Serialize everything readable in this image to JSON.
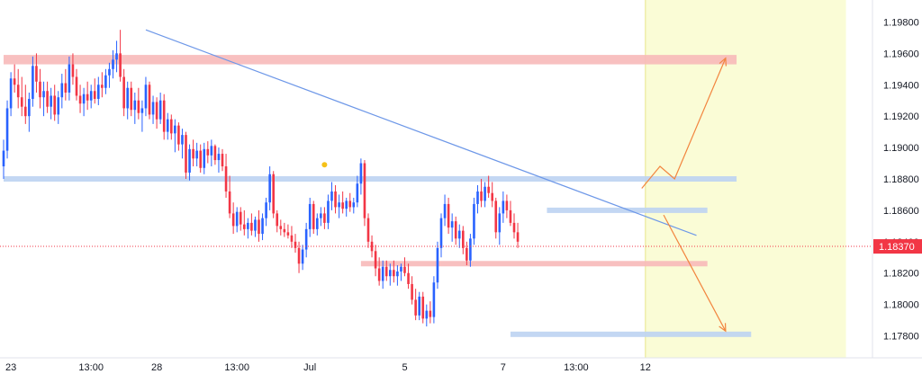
{
  "chart_data": {
    "type": "candlestick",
    "instrument_note": "",
    "y_axis": {
      "ticks": [
        "1.19800",
        "1.19600",
        "1.19400",
        "1.19200",
        "1.19000",
        "1.18800",
        "1.18600",
        "1.18400",
        "1.18200",
        "1.18000",
        "1.17800"
      ],
      "ylim": [
        1.1766,
        1.1994
      ],
      "current_price": "1.18370",
      "current_price_value": 1.1837
    },
    "x_axis": {
      "ticks": [
        {
          "label": "23",
          "bar": 2
        },
        {
          "label": "13:00",
          "bar": 24
        },
        {
          "label": "28",
          "bar": 42
        },
        {
          "label": "13:00",
          "bar": 64
        },
        {
          "label": "Jul",
          "bar": 84
        },
        {
          "label": "5",
          "bar": 110
        },
        {
          "label": "7",
          "bar": 137
        },
        {
          "label": "13:00",
          "bar": 157
        },
        {
          "label": "12",
          "bar": 176
        }
      ],
      "bars_visible": 240
    },
    "candles": [
      [
        1.1888,
        1.1905,
        1.188,
        1.1898
      ],
      [
        1.1898,
        1.193,
        1.1893,
        1.1925
      ],
      [
        1.1925,
        1.1948,
        1.192,
        1.1944
      ],
      [
        1.1944,
        1.1953,
        1.1935,
        1.194
      ],
      [
        1.194,
        1.195,
        1.1925,
        1.1932
      ],
      [
        1.1932,
        1.1945,
        1.192,
        1.1926
      ],
      [
        1.1926,
        1.194,
        1.1915,
        1.192
      ],
      [
        1.192,
        1.1935,
        1.191,
        1.1931
      ],
      [
        1.1931,
        1.1958,
        1.1926,
        1.1952
      ],
      [
        1.1952,
        1.196,
        1.1935,
        1.1942
      ],
      [
        1.1942,
        1.195,
        1.1925,
        1.1932
      ],
      [
        1.1932,
        1.1942,
        1.192,
        1.1936
      ],
      [
        1.1936,
        1.1942,
        1.1922,
        1.1926
      ],
      [
        1.1926,
        1.1938,
        1.1918,
        1.1933
      ],
      [
        1.1933,
        1.194,
        1.1917,
        1.1921
      ],
      [
        1.1921,
        1.1936,
        1.1915,
        1.1932
      ],
      [
        1.1932,
        1.1947,
        1.1925,
        1.1941
      ],
      [
        1.1941,
        1.195,
        1.193,
        1.1935
      ],
      [
        1.1935,
        1.1958,
        1.193,
        1.1953
      ],
      [
        1.1953,
        1.196,
        1.194,
        1.1945
      ],
      [
        1.1945,
        1.195,
        1.193,
        1.1933
      ],
      [
        1.1933,
        1.194,
        1.1922,
        1.1928
      ],
      [
        1.1928,
        1.1938,
        1.192,
        1.1934
      ],
      [
        1.1934,
        1.1942,
        1.1924,
        1.193
      ],
      [
        1.193,
        1.194,
        1.1925,
        1.1936
      ],
      [
        1.1936,
        1.1944,
        1.1928,
        1.1931
      ],
      [
        1.1931,
        1.1945,
        1.1927,
        1.194
      ],
      [
        1.194,
        1.1948,
        1.1932,
        1.1938
      ],
      [
        1.1938,
        1.195,
        1.1934,
        1.1946
      ],
      [
        1.1946,
        1.1954,
        1.1938,
        1.195
      ],
      [
        1.195,
        1.1962,
        1.1944,
        1.1956
      ],
      [
        1.1956,
        1.1968,
        1.1948,
        1.196
      ],
      [
        1.196,
        1.1975,
        1.1942,
        1.1945
      ],
      [
        1.1945,
        1.195,
        1.192,
        1.1925
      ],
      [
        1.1925,
        1.1942,
        1.1918,
        1.1938
      ],
      [
        1.1938,
        1.1942,
        1.192,
        1.1924
      ],
      [
        1.1924,
        1.1935,
        1.1915,
        1.193
      ],
      [
        1.193,
        1.1938,
        1.1918,
        1.1922
      ],
      [
        1.1922,
        1.193,
        1.191,
        1.1925
      ],
      [
        1.1925,
        1.1945,
        1.192,
        1.194
      ],
      [
        1.194,
        1.1942,
        1.1918,
        1.1921
      ],
      [
        1.1921,
        1.1933,
        1.1915,
        1.1929
      ],
      [
        1.1929,
        1.1932,
        1.1912,
        1.1918
      ],
      [
        1.1918,
        1.1935,
        1.1915,
        1.193
      ],
      [
        1.193,
        1.1934,
        1.1905,
        1.191
      ],
      [
        1.191,
        1.1922,
        1.1905,
        1.1918
      ],
      [
        1.1918,
        1.1921,
        1.1905,
        1.1909
      ],
      [
        1.1909,
        1.1918,
        1.1897,
        1.1914
      ],
      [
        1.1914,
        1.1916,
        1.1898,
        1.1902
      ],
      [
        1.1902,
        1.1912,
        1.1893,
        1.1908
      ],
      [
        1.1908,
        1.191,
        1.188,
        1.1884
      ],
      [
        1.1884,
        1.1902,
        1.1879,
        1.1899
      ],
      [
        1.1899,
        1.1905,
        1.1888,
        1.1893
      ],
      [
        1.1893,
        1.1903,
        1.1888,
        1.1898
      ],
      [
        1.1898,
        1.1902,
        1.1884,
        1.1887
      ],
      [
        1.1887,
        1.1903,
        1.1883,
        1.1899
      ],
      [
        1.1899,
        1.1904,
        1.189,
        1.1895
      ],
      [
        1.1895,
        1.1905,
        1.1888,
        1.1901
      ],
      [
        1.1901,
        1.1902,
        1.1889,
        1.1892
      ],
      [
        1.1892,
        1.19,
        1.1884,
        1.1896
      ],
      [
        1.1896,
        1.1899,
        1.1885,
        1.1888
      ],
      [
        1.1888,
        1.1896,
        1.1868,
        1.1872
      ],
      [
        1.1872,
        1.1882,
        1.1855,
        1.1858
      ],
      [
        1.1858,
        1.1865,
        1.1845,
        1.185
      ],
      [
        1.185,
        1.1862,
        1.1846,
        1.1859
      ],
      [
        1.1859,
        1.1862,
        1.1847,
        1.1851
      ],
      [
        1.1851,
        1.186,
        1.1844,
        1.1848
      ],
      [
        1.1848,
        1.1855,
        1.1842,
        1.1852
      ],
      [
        1.1852,
        1.1858,
        1.1844,
        1.1847
      ],
      [
        1.1847,
        1.1856,
        1.1843,
        1.1854
      ],
      [
        1.1854,
        1.186,
        1.184,
        1.1845
      ],
      [
        1.1845,
        1.1858,
        1.1841,
        1.1855
      ],
      [
        1.1855,
        1.1868,
        1.185,
        1.1865
      ],
      [
        1.1865,
        1.1888,
        1.186,
        1.1883
      ],
      [
        1.1883,
        1.1885,
        1.1855,
        1.1858
      ],
      [
        1.1858,
        1.186,
        1.1846,
        1.185
      ],
      [
        1.185,
        1.1854,
        1.1844,
        1.1848
      ],
      [
        1.1848,
        1.1852,
        1.1843,
        1.1846
      ],
      [
        1.1846,
        1.1851,
        1.1842,
        1.1844
      ],
      [
        1.1844,
        1.185,
        1.1836,
        1.184
      ],
      [
        1.184,
        1.1845,
        1.1833,
        1.1836
      ],
      [
        1.1836,
        1.184,
        1.182,
        1.1826
      ],
      [
        1.1826,
        1.1838,
        1.1822,
        1.1835
      ],
      [
        1.1835,
        1.1852,
        1.183,
        1.1848
      ],
      [
        1.1848,
        1.1868,
        1.1843,
        1.1864
      ],
      [
        1.1864,
        1.1866,
        1.1845,
        1.1848
      ],
      [
        1.1848,
        1.1858,
        1.1844,
        1.1855
      ],
      [
        1.1855,
        1.1862,
        1.185,
        1.1858
      ],
      [
        1.1858,
        1.1862,
        1.1848,
        1.1852
      ],
      [
        1.1852,
        1.187,
        1.1848,
        1.1866
      ],
      [
        1.1866,
        1.1878,
        1.186,
        1.1872
      ],
      [
        1.1872,
        1.1876,
        1.1858,
        1.1862
      ],
      [
        1.1862,
        1.187,
        1.1855,
        1.1865
      ],
      [
        1.1865,
        1.1872,
        1.1858,
        1.1861
      ],
      [
        1.1861,
        1.1868,
        1.1856,
        1.1866
      ],
      [
        1.1866,
        1.1871,
        1.1859,
        1.1862
      ],
      [
        1.1862,
        1.1868,
        1.1858,
        1.1865
      ],
      [
        1.1865,
        1.1882,
        1.1862,
        1.1877
      ],
      [
        1.1877,
        1.1893,
        1.187,
        1.189
      ],
      [
        1.189,
        1.1892,
        1.185,
        1.1855
      ],
      [
        1.1855,
        1.1858,
        1.1836,
        1.184
      ],
      [
        1.184,
        1.1844,
        1.183,
        1.1834
      ],
      [
        1.1834,
        1.1838,
        1.1818,
        1.1823
      ],
      [
        1.1823,
        1.183,
        1.1812,
        1.1815
      ],
      [
        1.1815,
        1.1828,
        1.181,
        1.1824
      ],
      [
        1.1824,
        1.1828,
        1.1815,
        1.1818
      ],
      [
        1.1818,
        1.1826,
        1.1812,
        1.1822
      ],
      [
        1.1822,
        1.1828,
        1.1814,
        1.1818
      ],
      [
        1.1818,
        1.1825,
        1.1812,
        1.1821
      ],
      [
        1.1821,
        1.1826,
        1.1815,
        1.1824
      ],
      [
        1.1824,
        1.183,
        1.1818,
        1.182
      ],
      [
        1.182,
        1.1826,
        1.181,
        1.1813
      ],
      [
        1.1813,
        1.1818,
        1.18,
        1.1803
      ],
      [
        1.1803,
        1.181,
        1.179,
        1.1793
      ],
      [
        1.1793,
        1.1808,
        1.179,
        1.1805
      ],
      [
        1.1805,
        1.1808,
        1.1788,
        1.1791
      ],
      [
        1.1791,
        1.18,
        1.1786,
        1.1796
      ],
      [
        1.1796,
        1.1802,
        1.1788,
        1.1792
      ],
      [
        1.1792,
        1.1818,
        1.1788,
        1.1814
      ],
      [
        1.1814,
        1.184,
        1.181,
        1.1836
      ],
      [
        1.1836,
        1.1858,
        1.183,
        1.1855
      ],
      [
        1.1855,
        1.187,
        1.185,
        1.1864
      ],
      [
        1.1864,
        1.1868,
        1.1845,
        1.1849
      ],
      [
        1.1849,
        1.1858,
        1.184,
        1.1853
      ],
      [
        1.1853,
        1.1856,
        1.1838,
        1.1842
      ],
      [
        1.1842,
        1.1851,
        1.1836,
        1.1847
      ],
      [
        1.1847,
        1.185,
        1.1832,
        1.1836
      ],
      [
        1.1836,
        1.184,
        1.1825,
        1.1828
      ],
      [
        1.1828,
        1.1845,
        1.1824,
        1.1842
      ],
      [
        1.1842,
        1.1868,
        1.1838,
        1.1864
      ],
      [
        1.1864,
        1.1876,
        1.1858,
        1.1872
      ],
      [
        1.1872,
        1.188,
        1.1862,
        1.1866
      ],
      [
        1.1866,
        1.1878,
        1.1862,
        1.1875
      ],
      [
        1.1875,
        1.1882,
        1.1868,
        1.1871
      ],
      [
        1.1871,
        1.1878,
        1.1862,
        1.1866
      ],
      [
        1.1866,
        1.1868,
        1.1842,
        1.1846
      ],
      [
        1.1846,
        1.1862,
        1.1838,
        1.1858
      ],
      [
        1.1858,
        1.1872,
        1.1852,
        1.1866
      ],
      [
        1.1866,
        1.187,
        1.1855,
        1.186
      ],
      [
        1.186,
        1.1866,
        1.185,
        1.1852
      ],
      [
        1.1852,
        1.1858,
        1.1842,
        1.1846
      ],
      [
        1.1846,
        1.1852,
        1.1836,
        1.184
      ]
    ],
    "candle_bars_start": 0,
    "annotations": {
      "resistance_zone": {
        "from": 1.1953,
        "to": 1.1959,
        "start_bar": 0,
        "end_bar": 201
      },
      "support_line_upper": {
        "value": 1.188,
        "start_bar": 0,
        "end_bar": 201
      },
      "mid_support_line": {
        "value": 1.186,
        "start_bar": 149,
        "end_bar": 193
      },
      "lower_zone": {
        "value": 1.1826,
        "start_bar": 98,
        "end_bar": 193
      },
      "low_support_line": {
        "value": 1.1781,
        "start_bar": 139,
        "end_bar": 205
      },
      "trendline": {
        "from": [
          39,
          1.1975
        ],
        "to": [
          190,
          1.1844
        ]
      },
      "marker_dot": {
        "bar": 88,
        "price": 1.1889
      },
      "forecast_up": [
        [
          175,
          1.1874
        ],
        [
          180,
          1.1888
        ],
        [
          184,
          1.188
        ],
        [
          198,
          1.1957
        ]
      ],
      "forecast_down": [
        [
          181,
          1.1857
        ],
        [
          198,
          1.1783
        ]
      ],
      "highlight_region_start_bar": 176,
      "highlight_region_end_bar": 231
    },
    "colors": {
      "bull": "#2962ff",
      "bear": "#f23645",
      "resistance_zone": "#f7b9b9",
      "support_line": "#bcd3f2",
      "trendline": "#6e98e8",
      "forecast": "#f2853f",
      "highlight": "#fafcd6",
      "marker": "#f5c118",
      "price_label": "#f23645"
    }
  }
}
